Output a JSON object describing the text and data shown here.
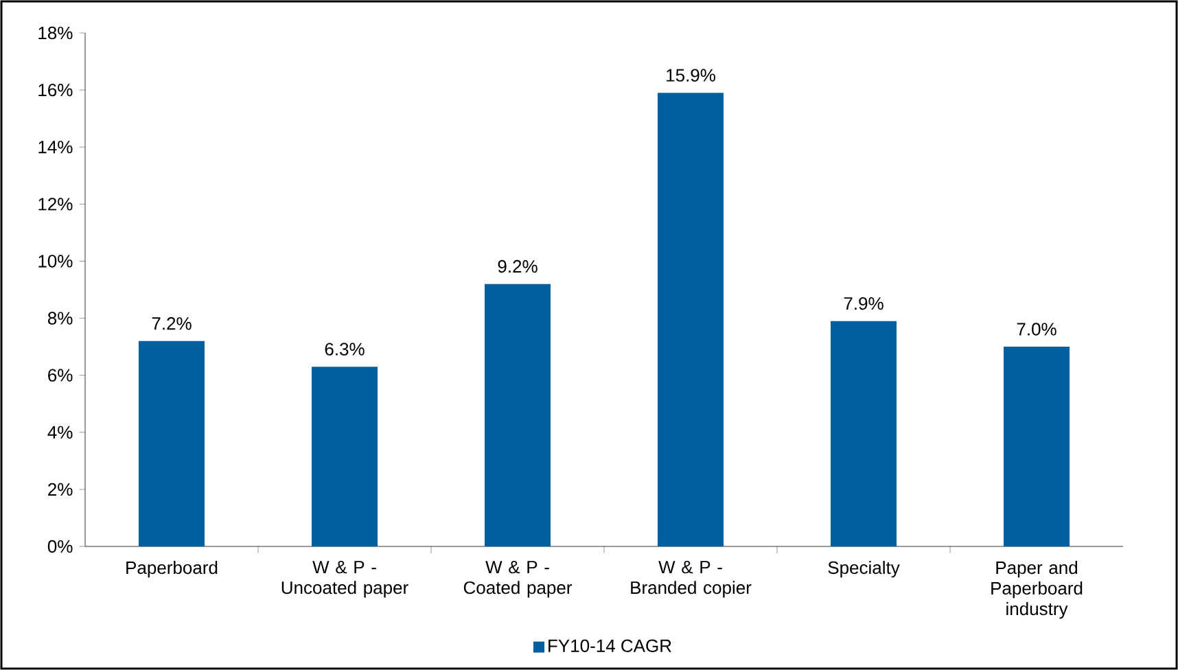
{
  "chart_data": {
    "type": "bar",
    "categories": [
      "Paperboard",
      "W & P - Uncoated paper",
      "W & P - Coated paper",
      "W & P - Branded copier",
      "Specialty",
      "Paper and Paperboard industry"
    ],
    "series": [
      {
        "name": "FY10-14 CAGR",
        "color": "#005f9e",
        "values": [
          7.2,
          6.3,
          9.2,
          15.9,
          7.9,
          7.0
        ],
        "value_labels": [
          "7.2%",
          "6.3%",
          "9.2%",
          "15.9%",
          "7.9%",
          "7.0%"
        ]
      }
    ],
    "ylim": [
      0,
      18
    ],
    "yticks": [
      {
        "value": 0,
        "label": "0%"
      },
      {
        "value": 2,
        "label": "2%"
      },
      {
        "value": 4,
        "label": "4%"
      },
      {
        "value": 6,
        "label": "6%"
      },
      {
        "value": 8,
        "label": "8%"
      },
      {
        "value": 10,
        "label": "10%"
      },
      {
        "value": 12,
        "label": "12%"
      },
      {
        "value": 14,
        "label": "14%"
      },
      {
        "value": 16,
        "label": "16%"
      },
      {
        "value": 18,
        "label": "18%"
      }
    ],
    "grid": false,
    "legend": "bottom"
  }
}
